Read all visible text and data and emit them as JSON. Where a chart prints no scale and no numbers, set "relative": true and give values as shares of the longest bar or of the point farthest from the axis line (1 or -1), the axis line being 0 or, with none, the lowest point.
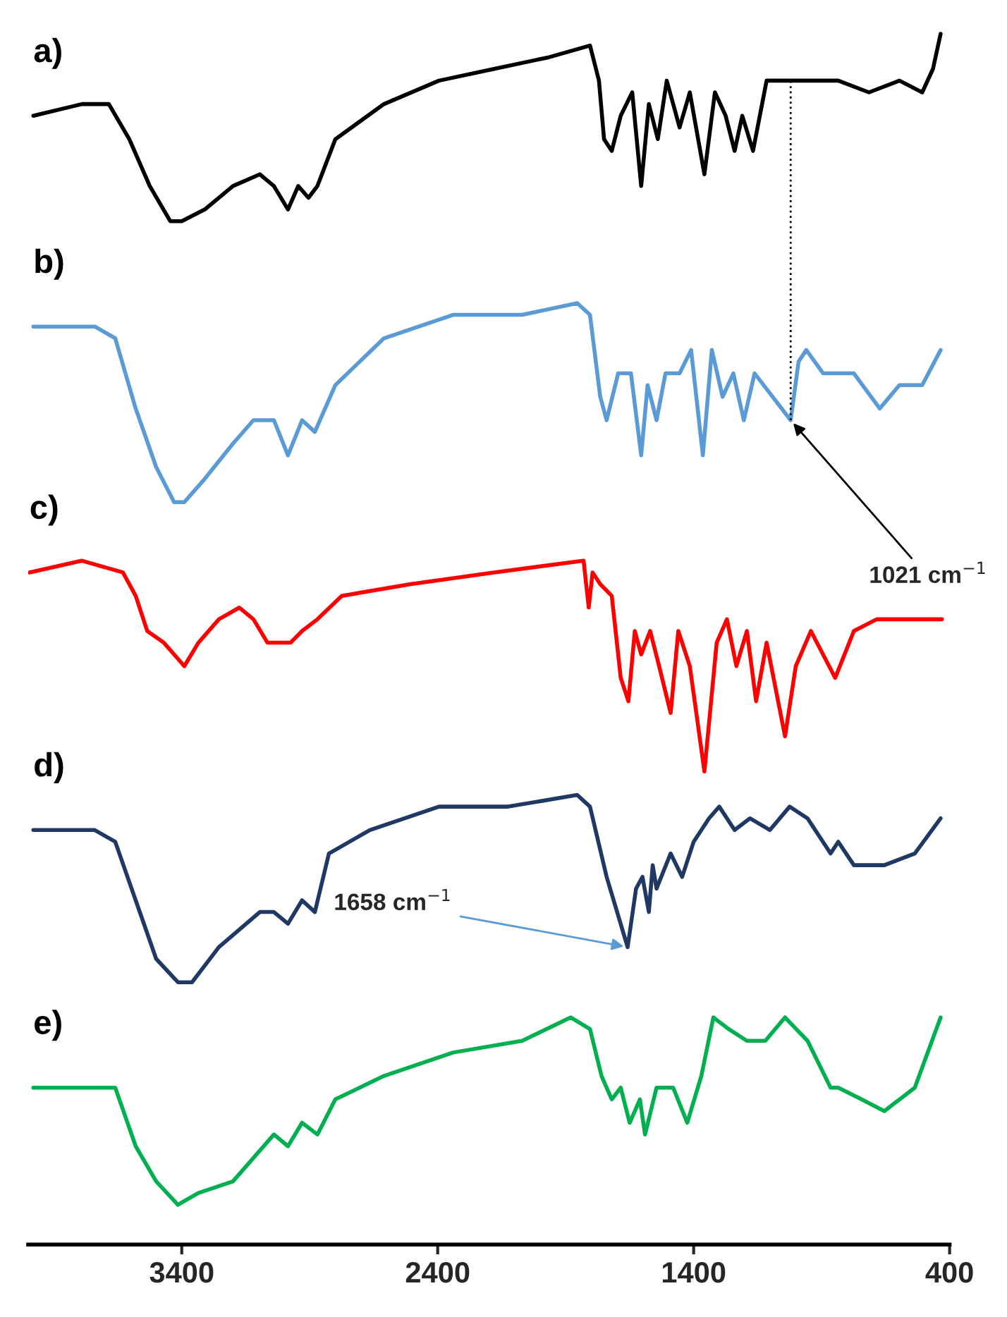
{
  "chart_data": {
    "type": "line",
    "relative": true,
    "xlim": [
      4000,
      400
    ],
    "xticks": [
      3400,
      2400,
      1400,
      400
    ],
    "grid": false,
    "legend": false,
    "tick_labels": "x",
    "marker": "none",
    "line_style": "solid",
    "annotations": [
      {
        "text": "1021 cm$^{−1}$",
        "x": 1021,
        "y": 0.67
      },
      {
        "text": "1658 cm$^{−1}$",
        "x": 1658,
        "y": 0.22
      }
    ],
    "ref_lines": [
      {
        "axis": "x",
        "value": 1021,
        "line_style": "dotted",
        "color": "#000000"
      }
    ],
    "series": [
      {
        "name": "a)",
        "color": "#000000",
        "x": [
          3980,
          3790,
          3685,
          3605,
          3525,
          3445,
          3400,
          3310,
          3200,
          3095,
          3040,
          2985,
          2945,
          2905,
          2870,
          2800,
          2610,
          2395,
          2180,
          1965,
          1805,
          1770,
          1750,
          1720,
          1685,
          1640,
          1605,
          1575,
          1540,
          1505,
          1455,
          1415,
          1358,
          1317,
          1275,
          1240,
          1210,
          1168,
          1115,
          983,
          835,
          715,
          596,
          507,
          465,
          435
        ],
        "values": [
          0.93,
          0.94,
          0.94,
          0.91,
          0.87,
          0.84,
          0.84,
          0.85,
          0.87,
          0.88,
          0.87,
          0.85,
          0.87,
          0.86,
          0.87,
          0.91,
          0.94,
          0.96,
          0.97,
          0.98,
          0.99,
          0.96,
          0.91,
          0.9,
          0.93,
          0.95,
          0.87,
          0.94,
          0.91,
          0.96,
          0.92,
          0.95,
          0.88,
          0.95,
          0.93,
          0.9,
          0.93,
          0.9,
          0.96,
          0.96,
          0.96,
          0.95,
          0.96,
          0.95,
          0.97,
          1.0
        ]
      },
      {
        "name": "b)",
        "color": "#5b9bd5",
        "x": [
          3980,
          3740,
          3660,
          3580,
          3500,
          3430,
          3390,
          3310,
          3200,
          3120,
          3040,
          2985,
          2930,
          2880,
          2800,
          2610,
          2340,
          2070,
          1855,
          1805,
          1765,
          1740,
          1695,
          1645,
          1605,
          1580,
          1545,
          1510,
          1455,
          1410,
          1364,
          1329,
          1287,
          1245,
          1204,
          1162,
          1021,
          990,
          960,
          894,
          774,
          673,
          596,
          507,
          435
        ],
        "values": [
          0.75,
          0.75,
          0.74,
          0.68,
          0.63,
          0.6,
          0.6,
          0.62,
          0.65,
          0.67,
          0.67,
          0.64,
          0.67,
          0.66,
          0.7,
          0.74,
          0.76,
          0.76,
          0.77,
          0.76,
          0.69,
          0.67,
          0.71,
          0.71,
          0.64,
          0.7,
          0.67,
          0.71,
          0.71,
          0.73,
          0.64,
          0.73,
          0.69,
          0.71,
          0.67,
          0.71,
          0.67,
          0.72,
          0.73,
          0.71,
          0.71,
          0.68,
          0.7,
          0.7,
          0.73
        ]
      },
      {
        "name": "c)",
        "color": "#ff0000",
        "x": [
          3995,
          3790,
          3630,
          3580,
          3535,
          3470,
          3390,
          3335,
          3255,
          3175,
          3120,
          3065,
          3010,
          2975,
          2930,
          2870,
          2775,
          2505,
          2180,
          1830,
          1810,
          1795,
          1765,
          1720,
          1685,
          1655,
          1630,
          1605,
          1570,
          1535,
          1490,
          1460,
          1415,
          1358,
          1310,
          1270,
          1233,
          1192,
          1156,
          1115,
          1043,
          1001,
          942,
          847,
          774,
          685,
          566,
          430
        ],
        "values": [
          0.54,
          0.55,
          0.54,
          0.52,
          0.49,
          0.48,
          0.46,
          0.48,
          0.5,
          0.51,
          0.5,
          0.48,
          0.48,
          0.48,
          0.49,
          0.5,
          0.52,
          0.53,
          0.54,
          0.55,
          0.51,
          0.54,
          0.53,
          0.52,
          0.45,
          0.43,
          0.49,
          0.47,
          0.49,
          0.46,
          0.42,
          0.49,
          0.46,
          0.37,
          0.48,
          0.5,
          0.46,
          0.49,
          0.43,
          0.48,
          0.4,
          0.46,
          0.49,
          0.45,
          0.49,
          0.5,
          0.5,
          0.5
        ]
      },
      {
        "name": "d)",
        "color": "#203864",
        "x": [
          3980,
          3740,
          3660,
          3580,
          3500,
          3415,
          3360,
          3255,
          3095,
          3040,
          2985,
          2930,
          2880,
          2825,
          2665,
          2395,
          2125,
          1855,
          1805,
          1740,
          1658,
          1625,
          1600,
          1575,
          1560,
          1545,
          1490,
          1445,
          1400,
          1340,
          1300,
          1240,
          1180,
          1102,
          1025,
          955,
          865,
          835,
          774,
          655,
          536,
          435
        ],
        "values": [
          0.32,
          0.32,
          0.31,
          0.26,
          0.21,
          0.19,
          0.19,
          0.22,
          0.25,
          0.25,
          0.24,
          0.26,
          0.25,
          0.3,
          0.32,
          0.34,
          0.34,
          0.35,
          0.34,
          0.28,
          0.22,
          0.27,
          0.28,
          0.25,
          0.29,
          0.27,
          0.3,
          0.28,
          0.31,
          0.33,
          0.34,
          0.32,
          0.33,
          0.32,
          0.34,
          0.33,
          0.3,
          0.31,
          0.29,
          0.29,
          0.3,
          0.33
        ]
      },
      {
        "name": "e)",
        "color": "#00b050",
        "x": [
          3980,
          3740,
          3660,
          3580,
          3500,
          3415,
          3335,
          3200,
          3040,
          2985,
          2930,
          2870,
          2800,
          2610,
          2340,
          2070,
          1880,
          1805,
          1760,
          1720,
          1685,
          1650,
          1610,
          1590,
          1545,
          1480,
          1425,
          1370,
          1323,
          1263,
          1192,
          1120,
          1043,
          955,
          865,
          835,
          744,
          655,
          536,
          435
        ],
        "values": [
          0.1,
          0.1,
          0.1,
          0.05,
          0.02,
          0.0,
          0.01,
          0.02,
          0.06,
          0.05,
          0.07,
          0.06,
          0.09,
          0.11,
          0.13,
          0.14,
          0.16,
          0.15,
          0.11,
          0.09,
          0.1,
          0.07,
          0.09,
          0.06,
          0.1,
          0.1,
          0.07,
          0.11,
          0.16,
          0.15,
          0.14,
          0.14,
          0.16,
          0.14,
          0.1,
          0.1,
          0.09,
          0.08,
          0.1,
          0.16
        ]
      }
    ]
  }
}
